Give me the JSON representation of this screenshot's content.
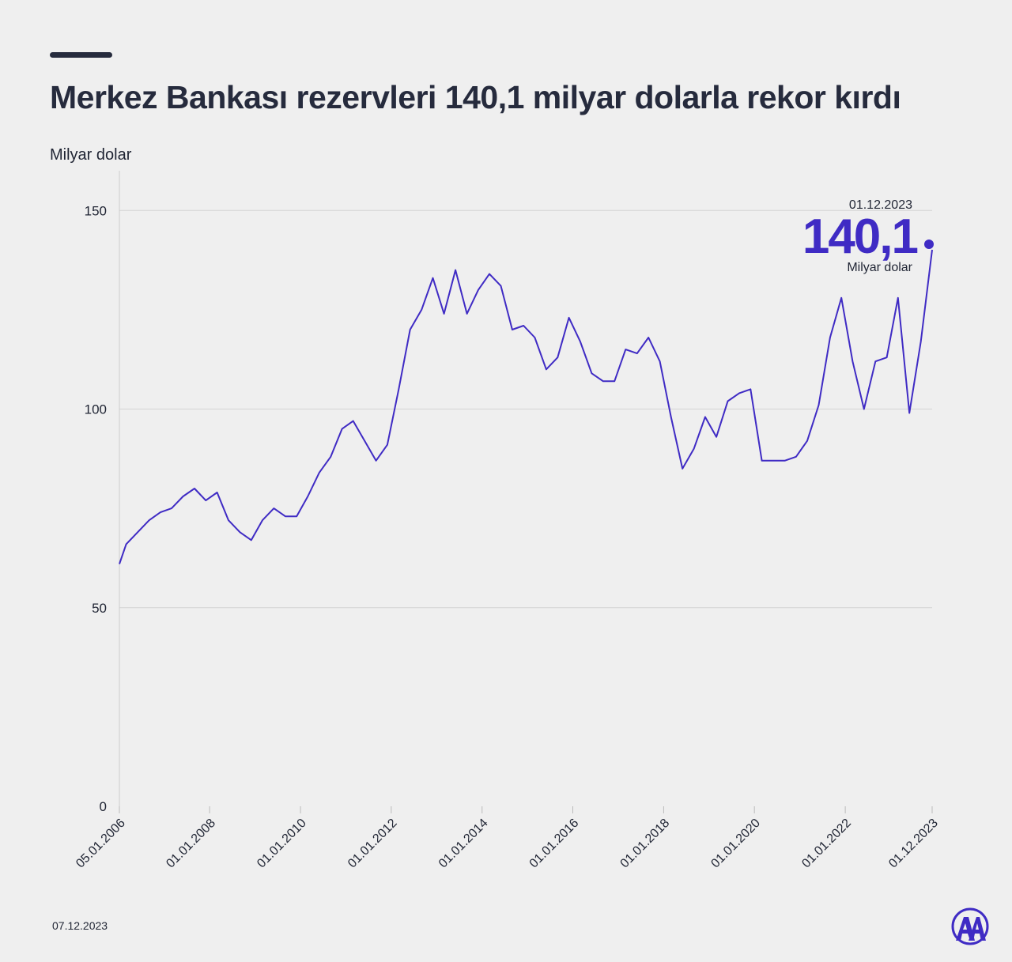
{
  "header": {
    "title": "Merkez Bankası rezervleri 140,1 milyar dolarla rekor kırdı",
    "unit_label": "Milyar dolar"
  },
  "callout": {
    "date": "01.12.2023",
    "value": "140,1",
    "unit": "Milyar dolar"
  },
  "footer": {
    "date": "07.12.2023",
    "logo": "aa-logo-icon"
  },
  "colors": {
    "line": "#3f2bc4",
    "callout": "#3f2bc4",
    "grid": "#d4d4d4",
    "text": "#1f2433"
  },
  "chart_data": {
    "type": "line",
    "title": "Merkez Bankası rezervleri 140,1 milyar dolarla rekor kırdı",
    "ylabel": "Milyar dolar",
    "xlabel": "",
    "ylim": [
      0,
      160
    ],
    "yticks": [
      0,
      50,
      100,
      150
    ],
    "xlim": [
      "2006-01-05",
      "2023-12-01"
    ],
    "xticks": [
      "05.01.2006",
      "01.01.2008",
      "01.01.2010",
      "01.01.2012",
      "01.01.2014",
      "01.01.2016",
      "01.01.2018",
      "01.01.2020",
      "01.01.2022",
      "01.12.2023"
    ],
    "grid": "horizontal",
    "series": [
      {
        "x": [
          "2006-01-05",
          "2006-03-01",
          "2006-06-01",
          "2006-09-01",
          "2006-12-01",
          "2007-03-01",
          "2007-06-01",
          "2007-09-01",
          "2007-12-01",
          "2008-03-01",
          "2008-06-01",
          "2008-09-01",
          "2008-12-01",
          "2009-03-01",
          "2009-06-01",
          "2009-09-01",
          "2009-12-01",
          "2010-03-01",
          "2010-06-01",
          "2010-09-01",
          "2010-12-01",
          "2011-03-01",
          "2011-06-01",
          "2011-09-01",
          "2011-12-01",
          "2012-03-01",
          "2012-06-01",
          "2012-09-01",
          "2012-12-01",
          "2013-03-01",
          "2013-06-01",
          "2013-09-01",
          "2013-12-01",
          "2014-03-01",
          "2014-06-01",
          "2014-09-01",
          "2014-12-01",
          "2015-03-01",
          "2015-06-01",
          "2015-09-01",
          "2015-12-01",
          "2016-03-01",
          "2016-06-01",
          "2016-09-01",
          "2016-12-01",
          "2017-03-01",
          "2017-06-01",
          "2017-09-01",
          "2017-12-01",
          "2018-03-01",
          "2018-06-01",
          "2018-09-01",
          "2018-12-01",
          "2019-03-01",
          "2019-06-01",
          "2019-09-01",
          "2019-12-01",
          "2020-03-01",
          "2020-06-01",
          "2020-09-01",
          "2020-12-01",
          "2021-03-01",
          "2021-06-01",
          "2021-09-01",
          "2021-12-01",
          "2022-03-01",
          "2022-06-01",
          "2022-09-01",
          "2022-12-01",
          "2023-03-01",
          "2023-06-01",
          "2023-09-01",
          "2023-12-01"
        ],
        "values": [
          61,
          66,
          69,
          72,
          74,
          75,
          78,
          80,
          77,
          79,
          72,
          69,
          67,
          72,
          75,
          73,
          73,
          78,
          84,
          88,
          95,
          97,
          92,
          87,
          91,
          105,
          120,
          125,
          133,
          124,
          135,
          124,
          130,
          134,
          131,
          120,
          121,
          118,
          110,
          113,
          123,
          117,
          109,
          107,
          107,
          115,
          114,
          118,
          112,
          98,
          85,
          90,
          98,
          93,
          102,
          104,
          105,
          87,
          87,
          87,
          88,
          92,
          101,
          118,
          128,
          112,
          100,
          112,
          113,
          128,
          99,
          117,
          140.1
        ]
      }
    ]
  }
}
